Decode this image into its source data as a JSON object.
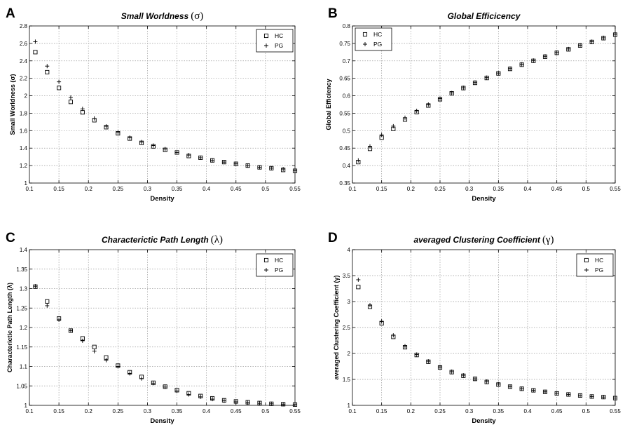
{
  "figure": {
    "panels": [
      "A",
      "B",
      "C",
      "D"
    ]
  },
  "chart_data": [
    {
      "panel": "A",
      "type": "scatter",
      "title": "Small Worldness",
      "title_symbol": "(σ)",
      "xlabel": "Density",
      "ylabel": "Small Worldness (σ)",
      "xlim": [
        0.1,
        0.55
      ],
      "ylim": [
        1,
        2.8
      ],
      "xticks": [
        0.1,
        0.15,
        0.2,
        0.25,
        0.3,
        0.35,
        0.4,
        0.45,
        0.5,
        0.55
      ],
      "xtick_labels": [
        "0.1",
        "0.15",
        "0.2",
        "0.25",
        "0.3",
        "0.35",
        "0.4",
        "0.45",
        "0.5",
        "0.55"
      ],
      "yticks": [
        1,
        1.2,
        1.4,
        1.6,
        1.8,
        2,
        2.2,
        2.4,
        2.6,
        2.8
      ],
      "ytick_labels": [
        "1",
        "1.2",
        "1.4",
        "1.6",
        "1.8",
        "2",
        "2.2",
        "2.4",
        "2.6",
        "2.8"
      ],
      "legend": "top-right",
      "grid": true,
      "x": [
        0.11,
        0.13,
        0.15,
        0.17,
        0.19,
        0.21,
        0.23,
        0.25,
        0.27,
        0.29,
        0.31,
        0.33,
        0.35,
        0.37,
        0.39,
        0.41,
        0.43,
        0.45,
        0.47,
        0.49,
        0.51,
        0.53,
        0.55
      ],
      "series": [
        {
          "name": "HC",
          "marker": "square",
          "values": [
            2.5,
            2.27,
            2.09,
            1.93,
            1.81,
            1.72,
            1.64,
            1.57,
            1.51,
            1.46,
            1.42,
            1.38,
            1.35,
            1.31,
            1.29,
            1.26,
            1.24,
            1.22,
            1.2,
            1.18,
            1.17,
            1.15,
            1.14
          ]
        },
        {
          "name": "PG",
          "marker": "plus",
          "values": [
            2.62,
            2.34,
            2.16,
            1.98,
            1.85,
            1.74,
            1.65,
            1.58,
            1.52,
            1.47,
            1.43,
            1.39,
            1.35,
            1.32,
            1.29,
            1.26,
            1.24,
            1.22,
            1.2,
            1.18,
            1.17,
            1.16,
            1.14
          ]
        }
      ]
    },
    {
      "panel": "B",
      "type": "scatter",
      "title": "Global Efficicency",
      "title_symbol": "",
      "xlabel": "Density",
      "ylabel": "Global Efficiency",
      "xlim": [
        0.1,
        0.55
      ],
      "ylim": [
        0.35,
        0.8
      ],
      "xticks": [
        0.1,
        0.15,
        0.2,
        0.25,
        0.3,
        0.35,
        0.4,
        0.45,
        0.5,
        0.55
      ],
      "xtick_labels": [
        "0.1",
        "0.15",
        "0.2",
        "0.25",
        "0.3",
        "0.35",
        "0.4",
        "0.45",
        "0.5",
        "0.55"
      ],
      "yticks": [
        0.35,
        0.4,
        0.45,
        0.5,
        0.55,
        0.6,
        0.65,
        0.7,
        0.75,
        0.8
      ],
      "ytick_labels": [
        "0.35",
        "0.4",
        "0.45",
        "0.5",
        "0.55",
        "0.6",
        "0.65",
        "0.7",
        "0.75",
        "0.8"
      ],
      "legend": "top-left",
      "grid": true,
      "x": [
        0.11,
        0.13,
        0.15,
        0.17,
        0.19,
        0.21,
        0.23,
        0.25,
        0.27,
        0.29,
        0.31,
        0.33,
        0.35,
        0.37,
        0.39,
        0.41,
        0.43,
        0.45,
        0.47,
        0.49,
        0.51,
        0.53,
        0.55
      ],
      "series": [
        {
          "name": "HC",
          "marker": "square",
          "values": [
            0.41,
            0.448,
            0.48,
            0.505,
            0.532,
            0.553,
            0.572,
            0.59,
            0.607,
            0.622,
            0.637,
            0.651,
            0.664,
            0.677,
            0.689,
            0.7,
            0.712,
            0.723,
            0.733,
            0.744,
            0.754,
            0.765,
            0.775
          ]
        },
        {
          "name": "PG",
          "marker": "plus",
          "values": [
            0.415,
            0.455,
            0.488,
            0.513,
            0.537,
            0.557,
            0.575,
            0.592,
            0.608,
            0.623,
            0.638,
            0.652,
            0.665,
            0.678,
            0.69,
            0.701,
            0.713,
            0.724,
            0.734,
            0.745,
            0.755,
            0.766,
            0.776
          ]
        }
      ]
    },
    {
      "panel": "C",
      "type": "scatter",
      "title": "Characterictic Path Length",
      "title_symbol": "(λ)",
      "xlabel": "Density",
      "ylabel": "Characterictic Path Length (λ)",
      "xlim": [
        0.1,
        0.55
      ],
      "ylim": [
        1,
        1.4
      ],
      "xticks": [
        0.1,
        0.15,
        0.2,
        0.25,
        0.3,
        0.35,
        0.4,
        0.45,
        0.5,
        0.55
      ],
      "xtick_labels": [
        "0.1",
        "0.15",
        "0.2",
        "0.25",
        "0.3",
        "0.35",
        "0.4",
        "0.45",
        "0.5",
        "0.55"
      ],
      "yticks": [
        1,
        1.05,
        1.1,
        1.15,
        1.2,
        1.25,
        1.3,
        1.35,
        1.4
      ],
      "ytick_labels": [
        "1",
        "1.05",
        "1.1",
        "1.15",
        "1.2",
        "1.25",
        "1.3",
        "1.35",
        "1.4"
      ],
      "legend": "top-right",
      "grid": true,
      "x": [
        0.11,
        0.13,
        0.15,
        0.17,
        0.19,
        0.21,
        0.23,
        0.25,
        0.27,
        0.29,
        0.31,
        0.33,
        0.35,
        0.37,
        0.39,
        0.41,
        0.43,
        0.45,
        0.47,
        0.49,
        0.51,
        0.53,
        0.55
      ],
      "series": [
        {
          "name": "HC",
          "marker": "square",
          "values": [
            1.305,
            1.267,
            1.223,
            1.192,
            1.172,
            1.15,
            1.123,
            1.102,
            1.085,
            1.073,
            1.058,
            1.048,
            1.039,
            1.031,
            1.024,
            1.018,
            1.013,
            1.01,
            1.008,
            1.006,
            1.004,
            1.003,
            1.002
          ]
        },
        {
          "name": "PG",
          "marker": "plus",
          "values": [
            1.306,
            1.256,
            1.22,
            1.192,
            1.166,
            1.139,
            1.116,
            1.1,
            1.082,
            1.069,
            1.057,
            1.047,
            1.037,
            1.028,
            1.022,
            1.016,
            1.012,
            1.009,
            1.007,
            1.005,
            1.004,
            1.003,
            1.002
          ]
        }
      ]
    },
    {
      "panel": "D",
      "type": "scatter",
      "title": "averaged Clustering Coefficient",
      "title_symbol": "(γ)",
      "xlabel": "Density",
      "ylabel": "averaged Clustering Coefficient (γ)",
      "xlim": [
        0.1,
        0.55
      ],
      "ylim": [
        1,
        4
      ],
      "xticks": [
        0.1,
        0.15,
        0.2,
        0.25,
        0.3,
        0.35,
        0.4,
        0.45,
        0.5,
        0.55
      ],
      "xtick_labels": [
        "0.1",
        "0.15",
        "0.2",
        "0.25",
        "0.3",
        "0.35",
        "0.4",
        "0.45",
        "0.5",
        "0.55"
      ],
      "yticks": [
        1,
        1.5,
        2,
        2.5,
        3,
        3.5,
        4
      ],
      "ytick_labels": [
        "1",
        "1.5",
        "2",
        "2.5",
        "3",
        "3.5",
        "4"
      ],
      "legend": "top-right",
      "grid": true,
      "x": [
        0.11,
        0.13,
        0.15,
        0.17,
        0.19,
        0.21,
        0.23,
        0.25,
        0.27,
        0.29,
        0.31,
        0.33,
        0.35,
        0.37,
        0.39,
        0.41,
        0.43,
        0.45,
        0.47,
        0.49,
        0.51,
        0.53,
        0.55
      ],
      "series": [
        {
          "name": "HC",
          "marker": "square",
          "values": [
            3.28,
            2.9,
            2.58,
            2.32,
            2.12,
            1.97,
            1.84,
            1.73,
            1.64,
            1.57,
            1.51,
            1.45,
            1.4,
            1.36,
            1.32,
            1.29,
            1.26,
            1.23,
            1.21,
            1.19,
            1.17,
            1.16,
            1.14
          ]
        },
        {
          "name": "PG",
          "marker": "plus",
          "values": [
            3.42,
            2.93,
            2.62,
            2.35,
            2.14,
            1.98,
            1.85,
            1.74,
            1.65,
            1.58,
            1.51,
            1.46,
            1.41,
            1.36,
            1.32,
            1.29,
            1.26,
            1.23,
            1.21,
            1.19,
            1.17,
            1.16,
            1.14
          ]
        }
      ]
    }
  ]
}
